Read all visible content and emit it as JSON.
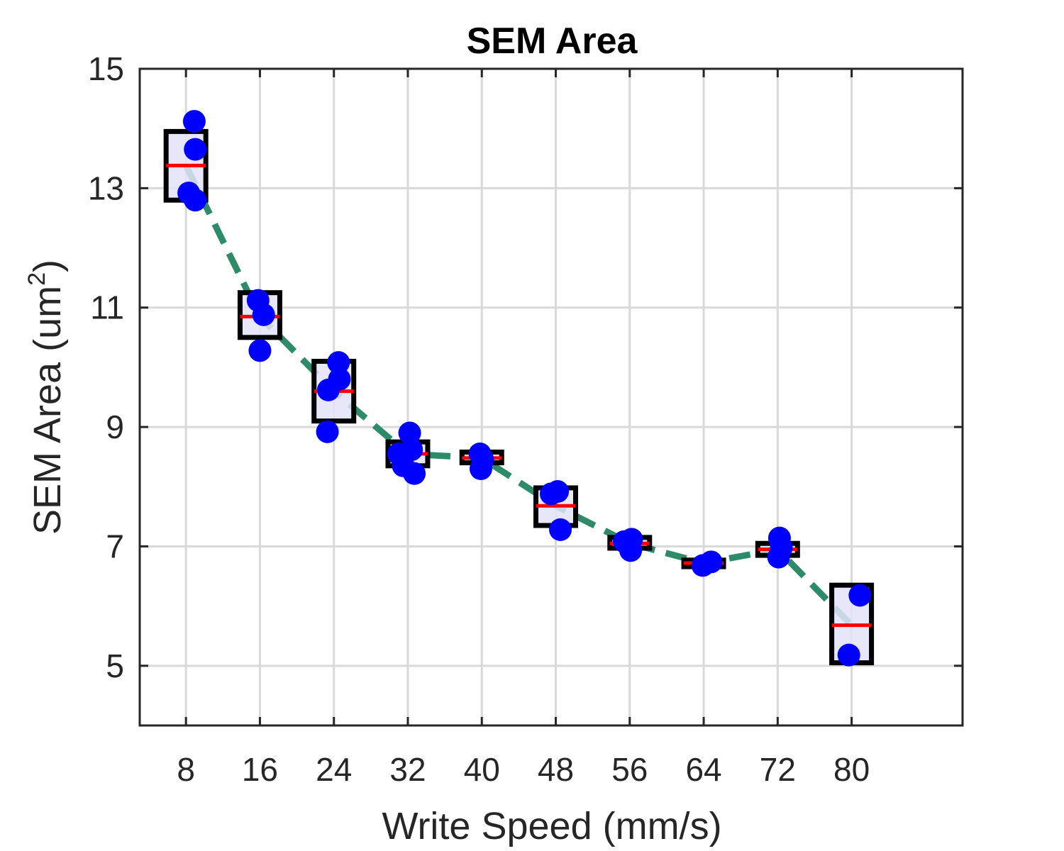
{
  "chart_data": {
    "type": "box",
    "title": "SEM Area",
    "xlabel": "Write Speed (mm/s)",
    "ylabel": "SEM Area (um",
    "ylabel_sup": "2",
    "ylabel_close": ")",
    "categories": [
      8,
      16,
      24,
      32,
      40,
      48,
      56,
      64,
      72,
      80
    ],
    "x_ticks": [
      "8",
      "16",
      "24",
      "32",
      "40",
      "48",
      "56",
      "64",
      "72",
      "80"
    ],
    "xlim": [
      3,
      92
    ],
    "ylim": [
      4,
      15
    ],
    "y_ticks": [
      5,
      7,
      9,
      11,
      13,
      15
    ],
    "grid": true,
    "boxes": [
      {
        "x": 8,
        "q1": 12.8,
        "q3": 13.95,
        "median": 13.38
      },
      {
        "x": 16,
        "q1": 10.5,
        "q3": 11.25,
        "median": 10.85
      },
      {
        "x": 24,
        "q1": 9.1,
        "q3": 10.1,
        "median": 9.6
      },
      {
        "x": 32,
        "q1": 8.35,
        "q3": 8.75,
        "median": 8.55
      },
      {
        "x": 40,
        "q1": 8.4,
        "q3": 8.58,
        "median": 8.48
      },
      {
        "x": 48,
        "q1": 7.35,
        "q3": 7.98,
        "median": 7.68
      },
      {
        "x": 56,
        "q1": 6.97,
        "q3": 7.15,
        "median": 7.05
      },
      {
        "x": 64,
        "q1": 6.66,
        "q3": 6.77,
        "median": 6.72
      },
      {
        "x": 72,
        "q1": 6.85,
        "q3": 7.05,
        "median": 6.95
      },
      {
        "x": 80,
        "q1": 5.05,
        "q3": 6.35,
        "median": 5.68
      }
    ],
    "trend": {
      "x": [
        8,
        16,
        24,
        32,
        40,
        48,
        56,
        64,
        72,
        80
      ],
      "y": [
        13.38,
        10.85,
        9.6,
        8.55,
        8.48,
        7.68,
        7.05,
        6.72,
        6.95,
        5.68
      ],
      "color": "#2e8b6a",
      "style": "dashed"
    },
    "points": [
      {
        "x": 8.9,
        "y": 14.12
      },
      {
        "x": 9.0,
        "y": 13.65
      },
      {
        "x": 8.3,
        "y": 12.92
      },
      {
        "x": 9.0,
        "y": 12.8
      },
      {
        "x": 15.8,
        "y": 11.12
      },
      {
        "x": 16.4,
        "y": 10.88
      },
      {
        "x": 16.0,
        "y": 10.28
      },
      {
        "x": 24.5,
        "y": 10.08
      },
      {
        "x": 24.6,
        "y": 9.8
      },
      {
        "x": 23.4,
        "y": 9.62
      },
      {
        "x": 23.3,
        "y": 8.92
      },
      {
        "x": 32.2,
        "y": 8.9
      },
      {
        "x": 32.4,
        "y": 8.62
      },
      {
        "x": 31.0,
        "y": 8.55
      },
      {
        "x": 31.5,
        "y": 8.35
      },
      {
        "x": 32.7,
        "y": 8.22
      },
      {
        "x": 39.8,
        "y": 8.55
      },
      {
        "x": 40.1,
        "y": 8.45
      },
      {
        "x": 39.9,
        "y": 8.3
      },
      {
        "x": 47.5,
        "y": 7.88
      },
      {
        "x": 48.2,
        "y": 7.92
      },
      {
        "x": 48.5,
        "y": 7.28
      },
      {
        "x": 55.4,
        "y": 7.08
      },
      {
        "x": 56.2,
        "y": 7.12
      },
      {
        "x": 56.1,
        "y": 6.93
      },
      {
        "x": 63.9,
        "y": 6.68
      },
      {
        "x": 64.8,
        "y": 6.74
      },
      {
        "x": 72.2,
        "y": 7.14
      },
      {
        "x": 72.4,
        "y": 6.98
      },
      {
        "x": 72.1,
        "y": 6.82
      },
      {
        "x": 80.9,
        "y": 6.18
      },
      {
        "x": 79.7,
        "y": 5.18
      }
    ],
    "colors": {
      "box_fill": "#e3e3f8",
      "box_edge": "#000000",
      "median": "#ff0000",
      "points": "#0000ff",
      "grid": "#d9d9d9",
      "axes": "#262626"
    }
  }
}
